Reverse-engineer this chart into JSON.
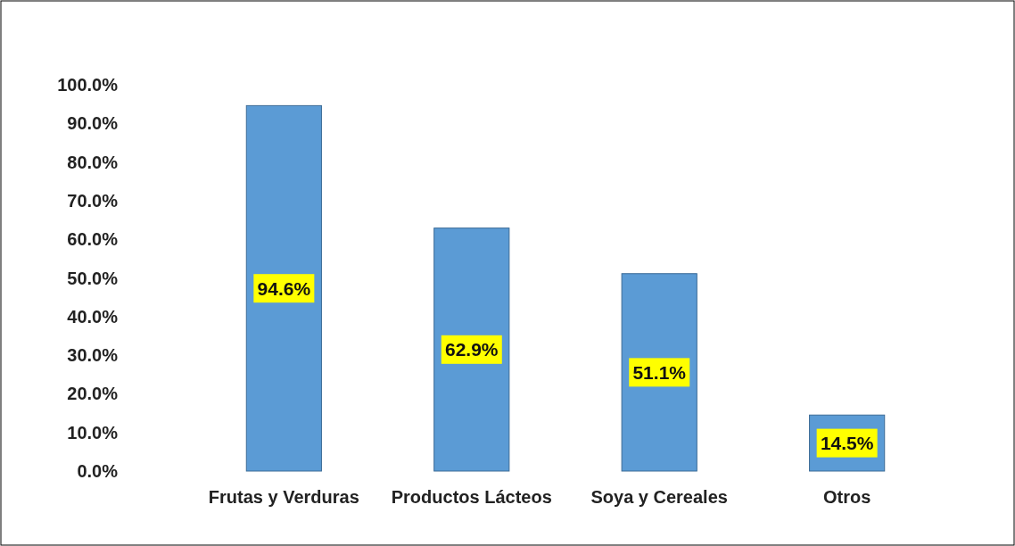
{
  "chart_data": {
    "type": "bar",
    "categories": [
      "Frutas y Verduras",
      "Productos Lácteos",
      "Soya y Cereales",
      "Otros"
    ],
    "values": [
      94.6,
      62.9,
      51.1,
      14.5
    ],
    "value_labels": [
      "94.6%",
      "62.9%",
      "51.1%",
      "14.5%"
    ],
    "color": "#5b9bd5",
    "ylim": [
      0,
      100
    ],
    "yticks": [
      {
        "value": 0,
        "label": "0.0%"
      },
      {
        "value": 10,
        "label": "10.0%"
      },
      {
        "value": 20,
        "label": "20.0%"
      },
      {
        "value": 30,
        "label": "30.0%"
      },
      {
        "value": 40,
        "label": "40.0%"
      },
      {
        "value": 50,
        "label": "50.0%"
      },
      {
        "value": 60,
        "label": "60.0%"
      },
      {
        "value": 70,
        "label": "70.0%"
      },
      {
        "value": 80,
        "label": "80.0%"
      },
      {
        "value": 90,
        "label": "90.0%"
      },
      {
        "value": 100,
        "label": "100.0%"
      }
    ],
    "grid": false
  }
}
